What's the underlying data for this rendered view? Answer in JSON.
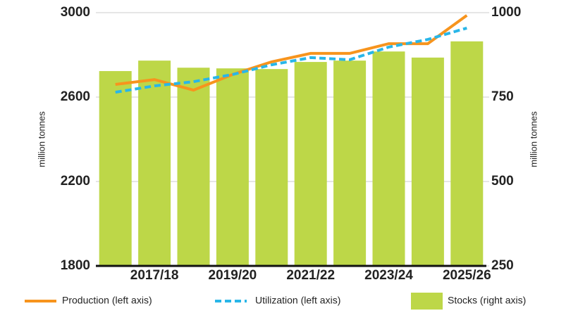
{
  "chart_data": {
    "type": "bar-line",
    "categories": [
      null,
      "2017/18",
      null,
      "2019/20",
      null,
      "2021/22",
      null,
      "2023/24",
      null,
      "2025/26"
    ],
    "series": [
      {
        "name": "Production (left axis)",
        "type": "line",
        "color": "#f7941d",
        "axis": "y",
        "values": [
          2660,
          2683,
          2633,
          2707,
          2767,
          2807,
          2807,
          2853,
          2853,
          2987
        ]
      },
      {
        "name": "Utilization (left axis)",
        "type": "dashed-line",
        "color": "#29b6e8",
        "axis": "y",
        "values": [
          2623,
          2653,
          2673,
          2707,
          2753,
          2787,
          2777,
          2837,
          2873,
          2927
        ]
      },
      {
        "name": "Stocks (right axis)",
        "type": "bar",
        "color": "#bdd748",
        "axis": "y2",
        "values": [
          827,
          858,
          837,
          835,
          833,
          854,
          858,
          885,
          867,
          915
        ]
      }
    ],
    "ylabel": "million tonnes",
    "y2label": "million tonnes",
    "ylim": [
      1800,
      3000
    ],
    "yticks": [
      1800,
      2200,
      2600,
      3000
    ],
    "y2lim": [
      250,
      1000
    ],
    "y2ticks": [
      250,
      500,
      750,
      1000
    ],
    "grid": true
  }
}
